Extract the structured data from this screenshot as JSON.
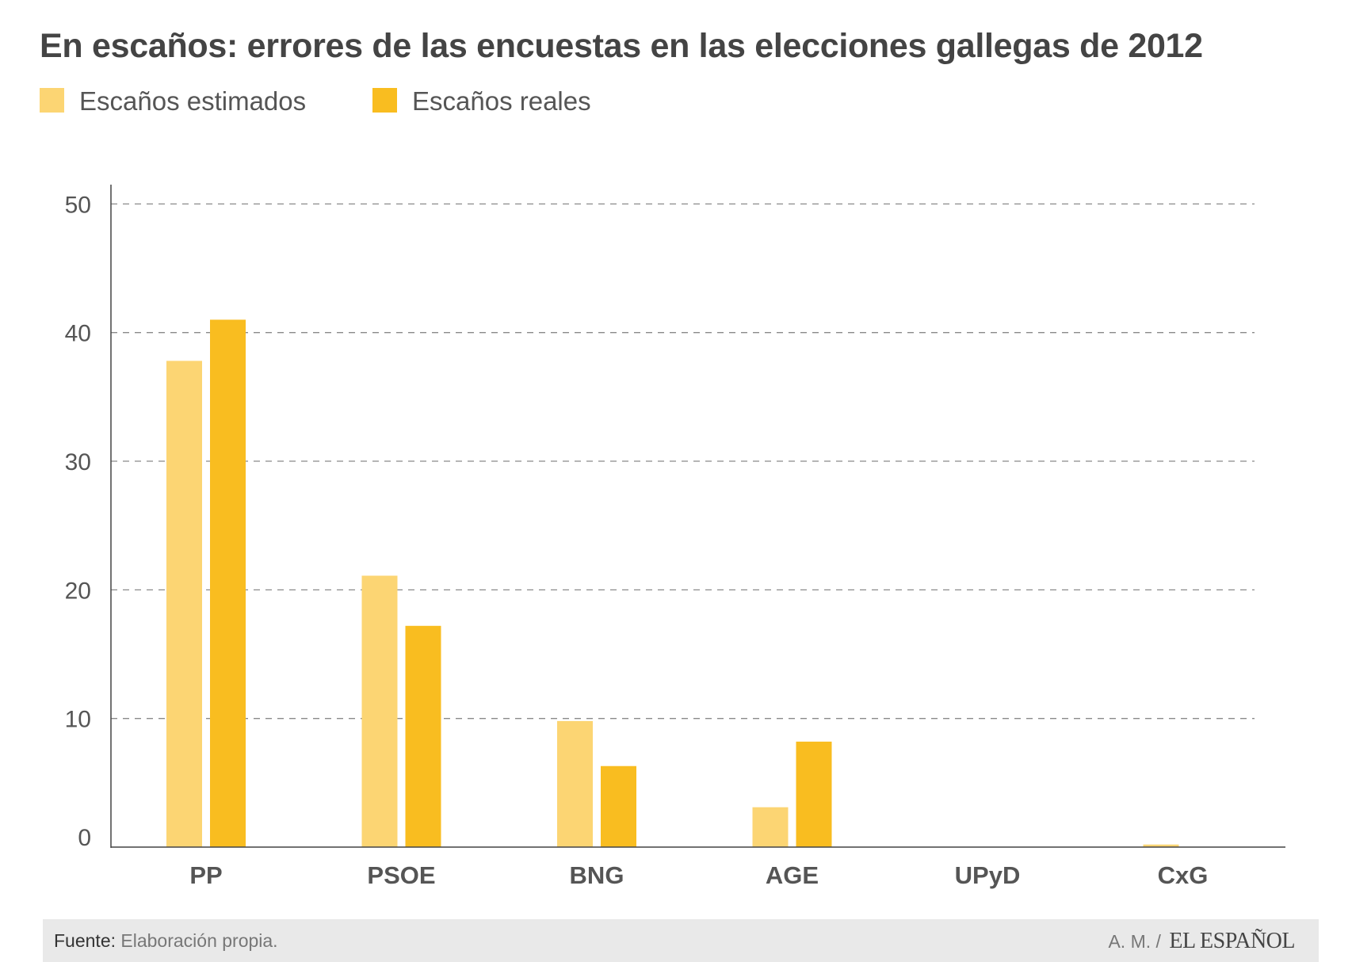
{
  "colors": {
    "estimated": "#fcd573",
    "real": "#f9bd20",
    "grid": "#8a8a8a",
    "axis": "#444444"
  },
  "chart_data": {
    "type": "bar",
    "title": "En escaños: errores de las encuestas en las elecciones gallegas de 2012",
    "categories": [
      "PP",
      "PSOE",
      "BNG",
      "AGE",
      "UPyD",
      "CxG"
    ],
    "series": [
      {
        "name": "Escaños estimados",
        "values": [
          37.8,
          21.1,
          9.8,
          3.1,
          0,
          0.2
        ]
      },
      {
        "name": "Escaños reales",
        "values": [
          41,
          17.2,
          6.3,
          8.2,
          0,
          0
        ]
      }
    ],
    "yticks": [
      0,
      10,
      20,
      30,
      40,
      50
    ],
    "ylim": [
      0,
      51.5
    ],
    "xlabel": "",
    "ylabel": "",
    "grid": true,
    "legend": "top-left"
  },
  "footer": {
    "source_prefix": "Fuente:",
    "source_text": "Elaboración propia.",
    "author": "A. M. /",
    "logo": "EL ESPAÑOL"
  }
}
